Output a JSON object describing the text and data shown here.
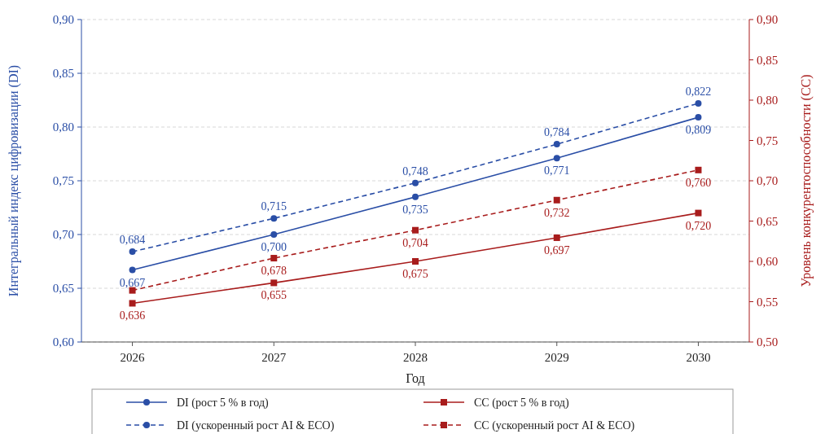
{
  "chart_data": {
    "type": "line",
    "xlabel": "Год",
    "ylabel": "Интегральный индекс цифровизации (DI)",
    "y2label": "Уровень конкурентоспособности (CC)",
    "categories": [
      "2026",
      "2027",
      "2028",
      "2029",
      "2030"
    ],
    "ylim": [
      0.6,
      0.9
    ],
    "yticks": [
      {
        "value": 0.6,
        "label": "0,60"
      },
      {
        "value": 0.65,
        "label": "0,65"
      },
      {
        "value": 0.7,
        "label": "0,70"
      },
      {
        "value": 0.75,
        "label": "0,75"
      },
      {
        "value": 0.8,
        "label": "0,80"
      },
      {
        "value": 0.85,
        "label": "0,85"
      },
      {
        "value": 0.9,
        "label": "0,90"
      }
    ],
    "y2lim": [
      0.5,
      0.9
    ],
    "y2ticks": [
      {
        "value": 0.5,
        "label": "0,50"
      },
      {
        "value": 0.55,
        "label": "0,55"
      },
      {
        "value": 0.6,
        "label": "0,60"
      },
      {
        "value": 0.65,
        "label": "0,65"
      },
      {
        "value": 0.7,
        "label": "0,70"
      },
      {
        "value": 0.75,
        "label": "0,75"
      },
      {
        "value": 0.8,
        "label": "0,80"
      },
      {
        "value": 0.85,
        "label": "0,85"
      },
      {
        "value": 0.9,
        "label": "0,90"
      }
    ],
    "grid": "y",
    "legend": "bottom",
    "series": [
      {
        "name": "DI (рост 5 % в год)",
        "color": "#2a4ea6",
        "marker": "circle",
        "line_style": "solid",
        "values": [
          0.667,
          0.7,
          0.735,
          0.771,
          0.809
        ],
        "value_labels": [
          "0,667",
          "0,700",
          "0,735",
          "0,771",
          "0,809"
        ]
      },
      {
        "name": "DI (ускоренный рост AI & ECO)",
        "color": "#2a4ea6",
        "marker": "circle",
        "line_style": "dashed",
        "values": [
          0.684,
          0.715,
          0.748,
          0.784,
          0.822
        ],
        "value_labels": [
          "0,684",
          "0,715",
          "0,748",
          "0,784",
          "0,822"
        ]
      },
      {
        "name": "CC (рост 5 % в год)",
        "color": "#a81c1c",
        "marker": "square",
        "line_style": "solid",
        "values": [
          0.636,
          0.655,
          0.675,
          0.697,
          0.72
        ],
        "value_labels": [
          "0,636",
          "0,655",
          "0,675",
          "0,697",
          "0,720"
        ]
      },
      {
        "name": "CC (ускоренный рост AI & ECO)",
        "color": "#a81c1c",
        "marker": "square",
        "line_style": "dashed",
        "values": [
          0.648,
          0.678,
          0.704,
          0.732,
          0.76
        ],
        "value_labels": [
          null,
          "0,678",
          "0,704",
          "0,732",
          "0,760"
        ]
      }
    ]
  }
}
